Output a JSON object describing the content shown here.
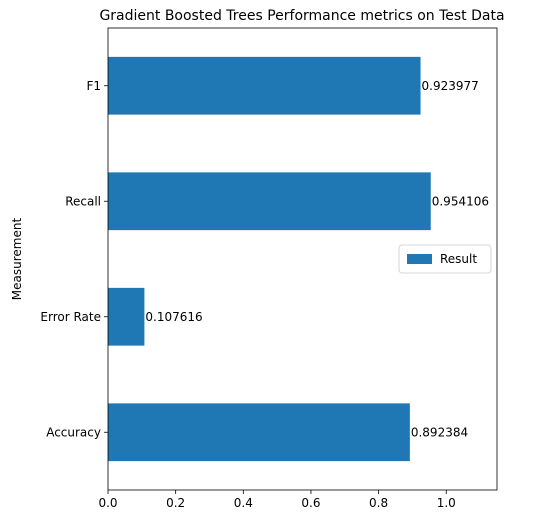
{
  "chart_data": {
    "type": "bar",
    "orientation": "horizontal",
    "title": "Gradient Boosted Trees Performance metrics on Test Data",
    "xlabel": "",
    "ylabel": "Measurement",
    "categories": [
      "Accuracy",
      "Error Rate",
      "Recall",
      "F1"
    ],
    "series": [
      {
        "name": "Result",
        "values": [
          0.892384,
          0.107616,
          0.954106,
          0.923977
        ],
        "value_labels": [
          "0.892384",
          "0.107616",
          "0.954106",
          "0.923977"
        ],
        "color": "#1f77b4"
      }
    ],
    "xlim": [
      0,
      1.15
    ],
    "xticks": [
      0.0,
      0.2,
      0.4,
      0.6,
      0.8,
      1.0
    ],
    "xtick_labels": [
      "0.0",
      "0.2",
      "0.4",
      "0.6",
      "0.8",
      "1.0"
    ],
    "grid": false,
    "legend": {
      "position": "center-right"
    }
  }
}
